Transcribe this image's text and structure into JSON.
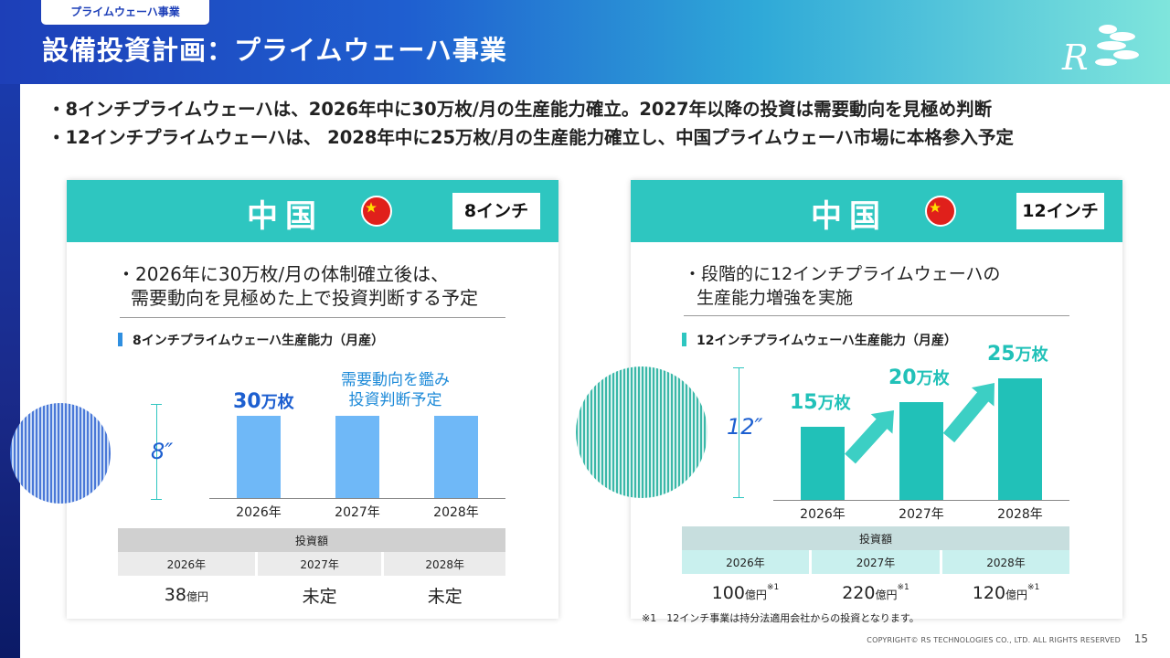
{
  "header": {
    "tag": "プライムウェーハ事業",
    "title": "設備投資計画：プライムウェーハ事業",
    "logo_text": "R"
  },
  "bullets": [
    "・8インチプライムウェーハは、2026年中に30万枚/月の生産能力確立。2027年以降の投資は需要動向を見極め判断",
    "・12インチプライムウェーハは、 2028年中に25万枚/月の生産能力確立し、中国プライムウェーハ市場に本格参入予定"
  ],
  "left_panel": {
    "country": "中国",
    "size_tag": "8インチ",
    "desc_line1": "・2026年に30万枚/月の体制確立後は、",
    "desc_line2": "需要動向を見極めた上で投資判断する予定",
    "chart_label": "8インチプライムウェーハ生産能力（月産）",
    "wafer_dim": "8″",
    "value_label_num": "30",
    "value_label_unit": "万枚",
    "note_line1": "需要動向を鑑み",
    "note_line2": "投資判断予定",
    "table": {
      "header": "投資額",
      "years": [
        "2026年",
        "2027年",
        "2028年"
      ],
      "values": [
        {
          "num": "38",
          "unit": "億円"
        },
        {
          "num": "未定",
          "unit": ""
        },
        {
          "num": "未定",
          "unit": ""
        }
      ]
    }
  },
  "right_panel": {
    "country": "中国",
    "size_tag": "12インチ",
    "desc_line1": "・段階的に12インチプライムウェーハの",
    "desc_line2": "生産能力増強を実施",
    "chart_label": "12インチプライムウェーハ生産能力（月産）",
    "wafer_dim": "12″",
    "table": {
      "header": "投資額",
      "years": [
        "2026年",
        "2027年",
        "2028年"
      ],
      "values": [
        {
          "num": "100",
          "unit": "億円",
          "sup": "※1"
        },
        {
          "num": "220",
          "unit": "億円",
          "sup": "※1"
        },
        {
          "num": "120",
          "unit": "億円",
          "sup": "※1"
        }
      ]
    }
  },
  "footnote": "※1　12インチ事業は持分法適用会社からの投資となります。",
  "copyright": "COPYRIGHT© RS TECHNOLOGIES CO., LTD. ALL RIGHTS RESERVED",
  "page_number": "15",
  "colors": {
    "blue_bar": "#6fb8f7",
    "teal_bar": "#21c1b8",
    "header_teal": "#2ec6c0",
    "accent_blue": "#1d5fd0"
  },
  "chart_data": [
    {
      "type": "bar",
      "title": "8インチプライムウェーハ生産能力（月産）",
      "categories": [
        "2026年",
        "2027年",
        "2028年"
      ],
      "values": [
        30,
        30,
        30
      ],
      "unit": "万枚",
      "ylim": [
        0,
        36
      ],
      "grid": false
    },
    {
      "type": "bar",
      "title": "12インチプライムウェーハ生産能力（月産）",
      "categories": [
        "2026年",
        "2027年",
        "2028年"
      ],
      "values": [
        15,
        20,
        25
      ],
      "unit": "万枚",
      "ylim": [
        0,
        30
      ],
      "grid": false
    }
  ]
}
